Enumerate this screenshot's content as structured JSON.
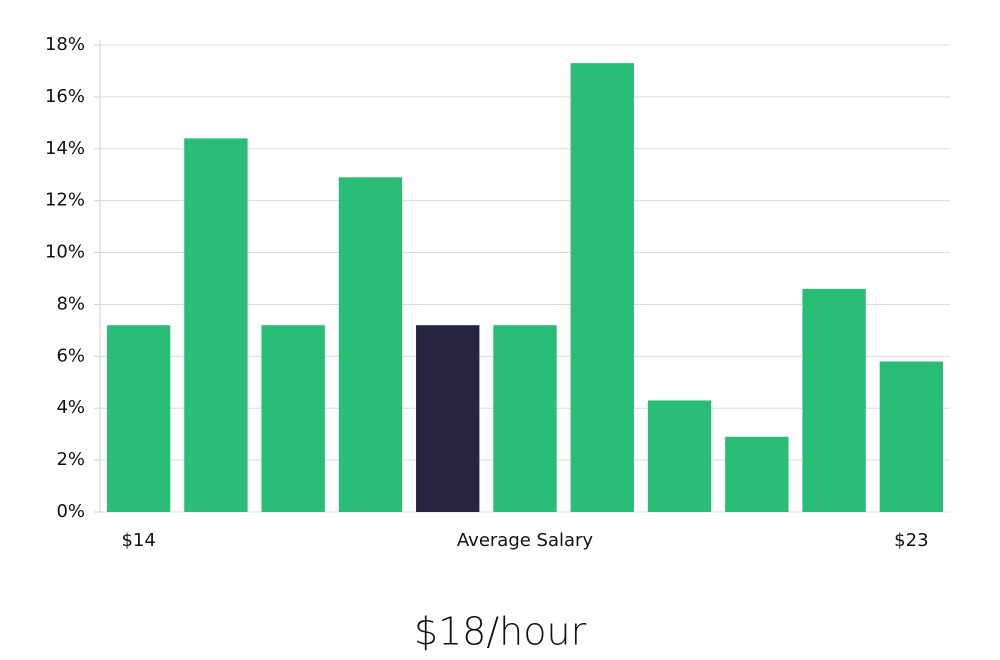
{
  "chart_data": {
    "type": "bar",
    "categories": [
      "$14",
      null,
      null,
      null,
      null,
      null,
      null,
      null,
      null,
      null,
      "$23"
    ],
    "values": [
      7.2,
      14.4,
      7.2,
      12.9,
      7.2,
      7.2,
      17.3,
      4.3,
      2.9,
      8.6,
      5.8
    ],
    "colors": [
      "#2abd77",
      "#2abd77",
      "#2abd77",
      "#2abd77",
      "#272442",
      "#2abd77",
      "#2abd77",
      "#2abd77",
      "#2abd77",
      "#2abd77",
      "#2abd77"
    ],
    "xlabel": "Average Salary",
    "ylim": [
      0,
      18
    ],
    "yticks": [
      {
        "value": 0,
        "label": "0%"
      },
      {
        "value": 2,
        "label": "2%"
      },
      {
        "value": 4,
        "label": "4%"
      },
      {
        "value": 6,
        "label": "6%"
      },
      {
        "value": 8,
        "label": "8%"
      },
      {
        "value": 10,
        "label": "10%"
      },
      {
        "value": 12,
        "label": "12%"
      },
      {
        "value": 14,
        "label": "14%"
      },
      {
        "value": 16,
        "label": "16%"
      },
      {
        "value": 18,
        "label": "18%"
      }
    ],
    "grid": true,
    "annotation": "$18/hour"
  }
}
